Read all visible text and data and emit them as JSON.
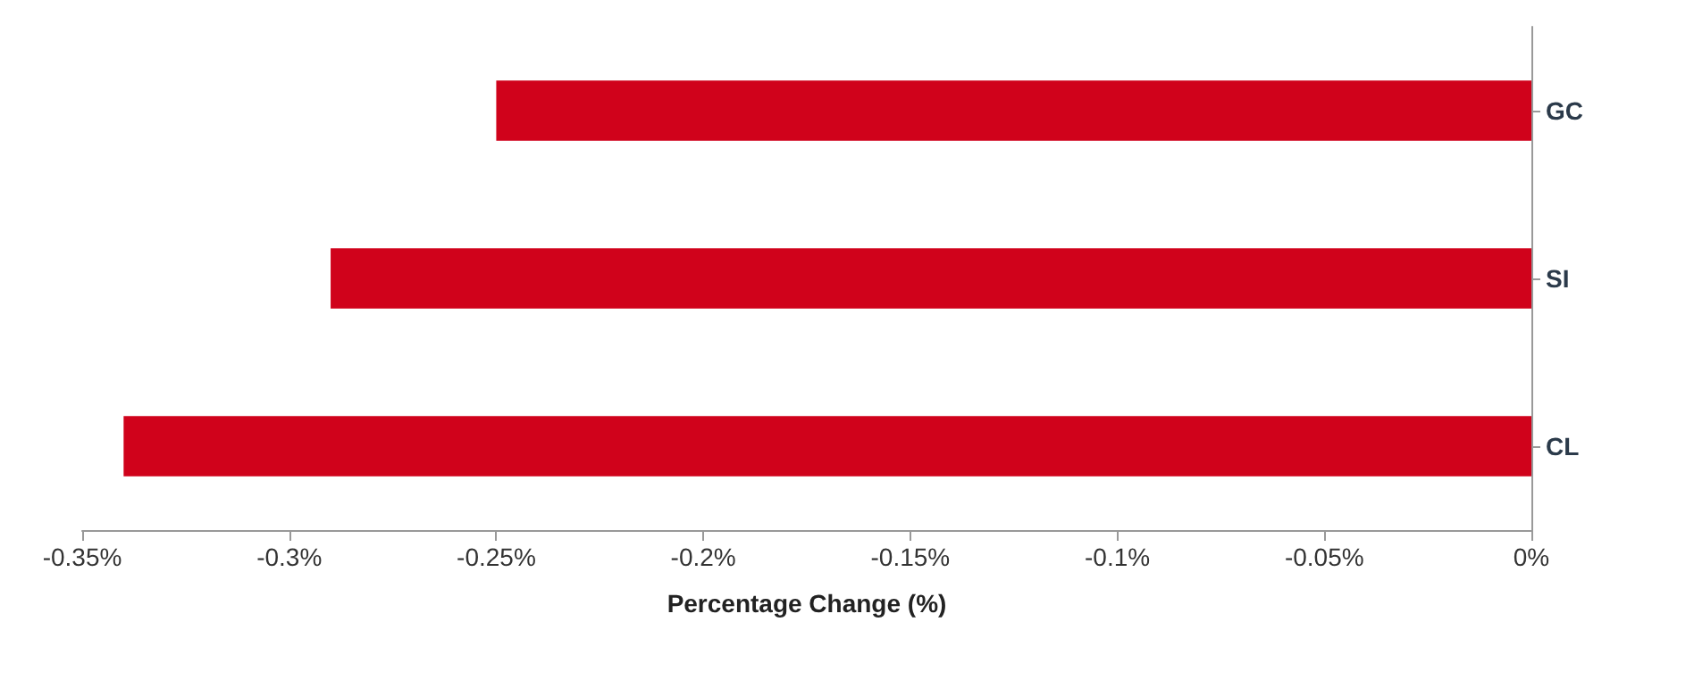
{
  "chart_data": {
    "type": "bar",
    "orientation": "horizontal",
    "xlabel": "Percentage Change (%)",
    "categories": [
      "GC",
      "SI",
      "CL"
    ],
    "values": [
      -0.25,
      -0.29,
      -0.34
    ],
    "color": "#d0021b",
    "xlim": [
      -0.35,
      0
    ],
    "xticks": [
      {
        "value": -0.35,
        "label": "-0.35%"
      },
      {
        "value": -0.3,
        "label": "-0.3%"
      },
      {
        "value": -0.25,
        "label": "-0.25%"
      },
      {
        "value": -0.2,
        "label": "-0.2%"
      },
      {
        "value": -0.15,
        "label": "-0.15%"
      },
      {
        "value": -0.1,
        "label": "-0.1%"
      },
      {
        "value": -0.05,
        "label": "-0.05%"
      },
      {
        "value": 0,
        "label": "0%"
      }
    ],
    "grid": false
  }
}
